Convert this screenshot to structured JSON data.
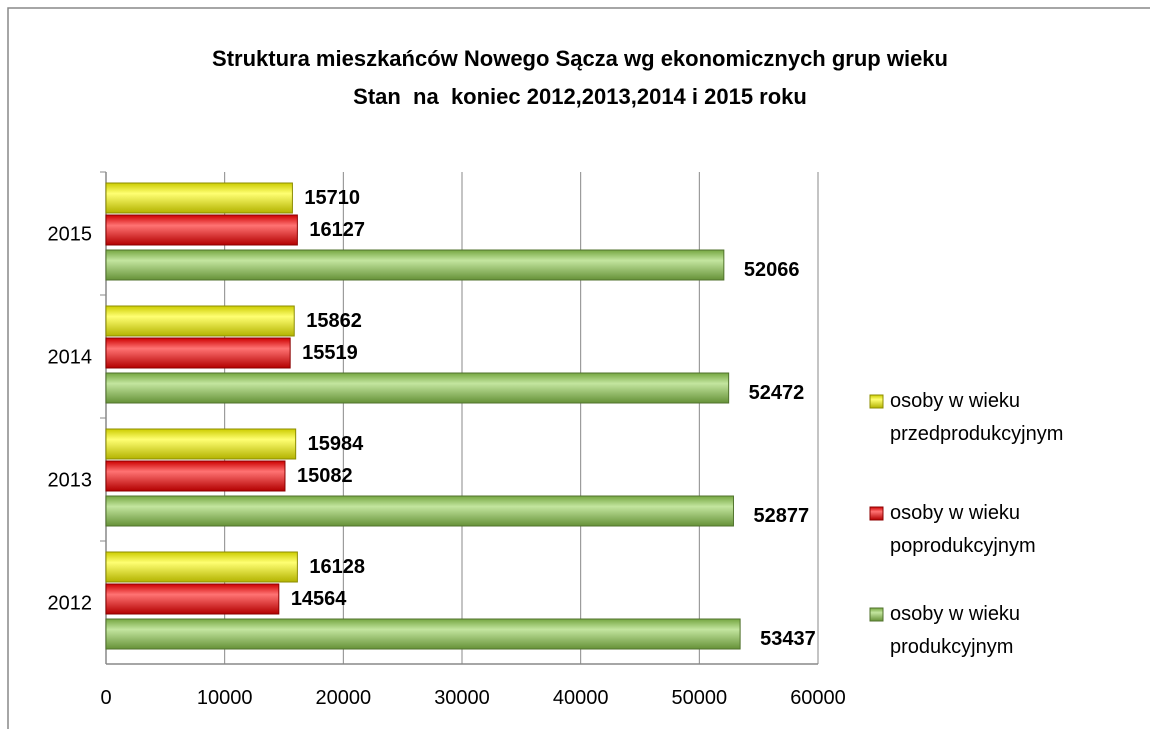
{
  "chart_data": {
    "type": "barh",
    "title": "Struktura mieszkańców Nowego Sącza wg ekonomicznych grup wieku",
    "subtitle": "Stan  na  koniec 2012,2013,2014 i 2015 roku",
    "categories": [
      "2012",
      "2013",
      "2014",
      "2015"
    ],
    "series": [
      {
        "name": "osoby w wieku przedprodukcyjnym",
        "color": "#ffff00",
        "values": [
          16128,
          15984,
          15862,
          15710
        ]
      },
      {
        "name": "osoby w wieku poprodukcyjnym",
        "color": "#ff0000",
        "values": [
          14564,
          15082,
          15519,
          16127
        ]
      },
      {
        "name": "osoby w wieku produkcyjnym",
        "color": "#92d050",
        "values": [
          53437,
          52877,
          52472,
          52066
        ]
      }
    ],
    "xlim": [
      0,
      60000
    ],
    "xticks": [
      0,
      10000,
      20000,
      30000,
      40000,
      50000,
      60000
    ],
    "grid": true,
    "legend": "right"
  }
}
